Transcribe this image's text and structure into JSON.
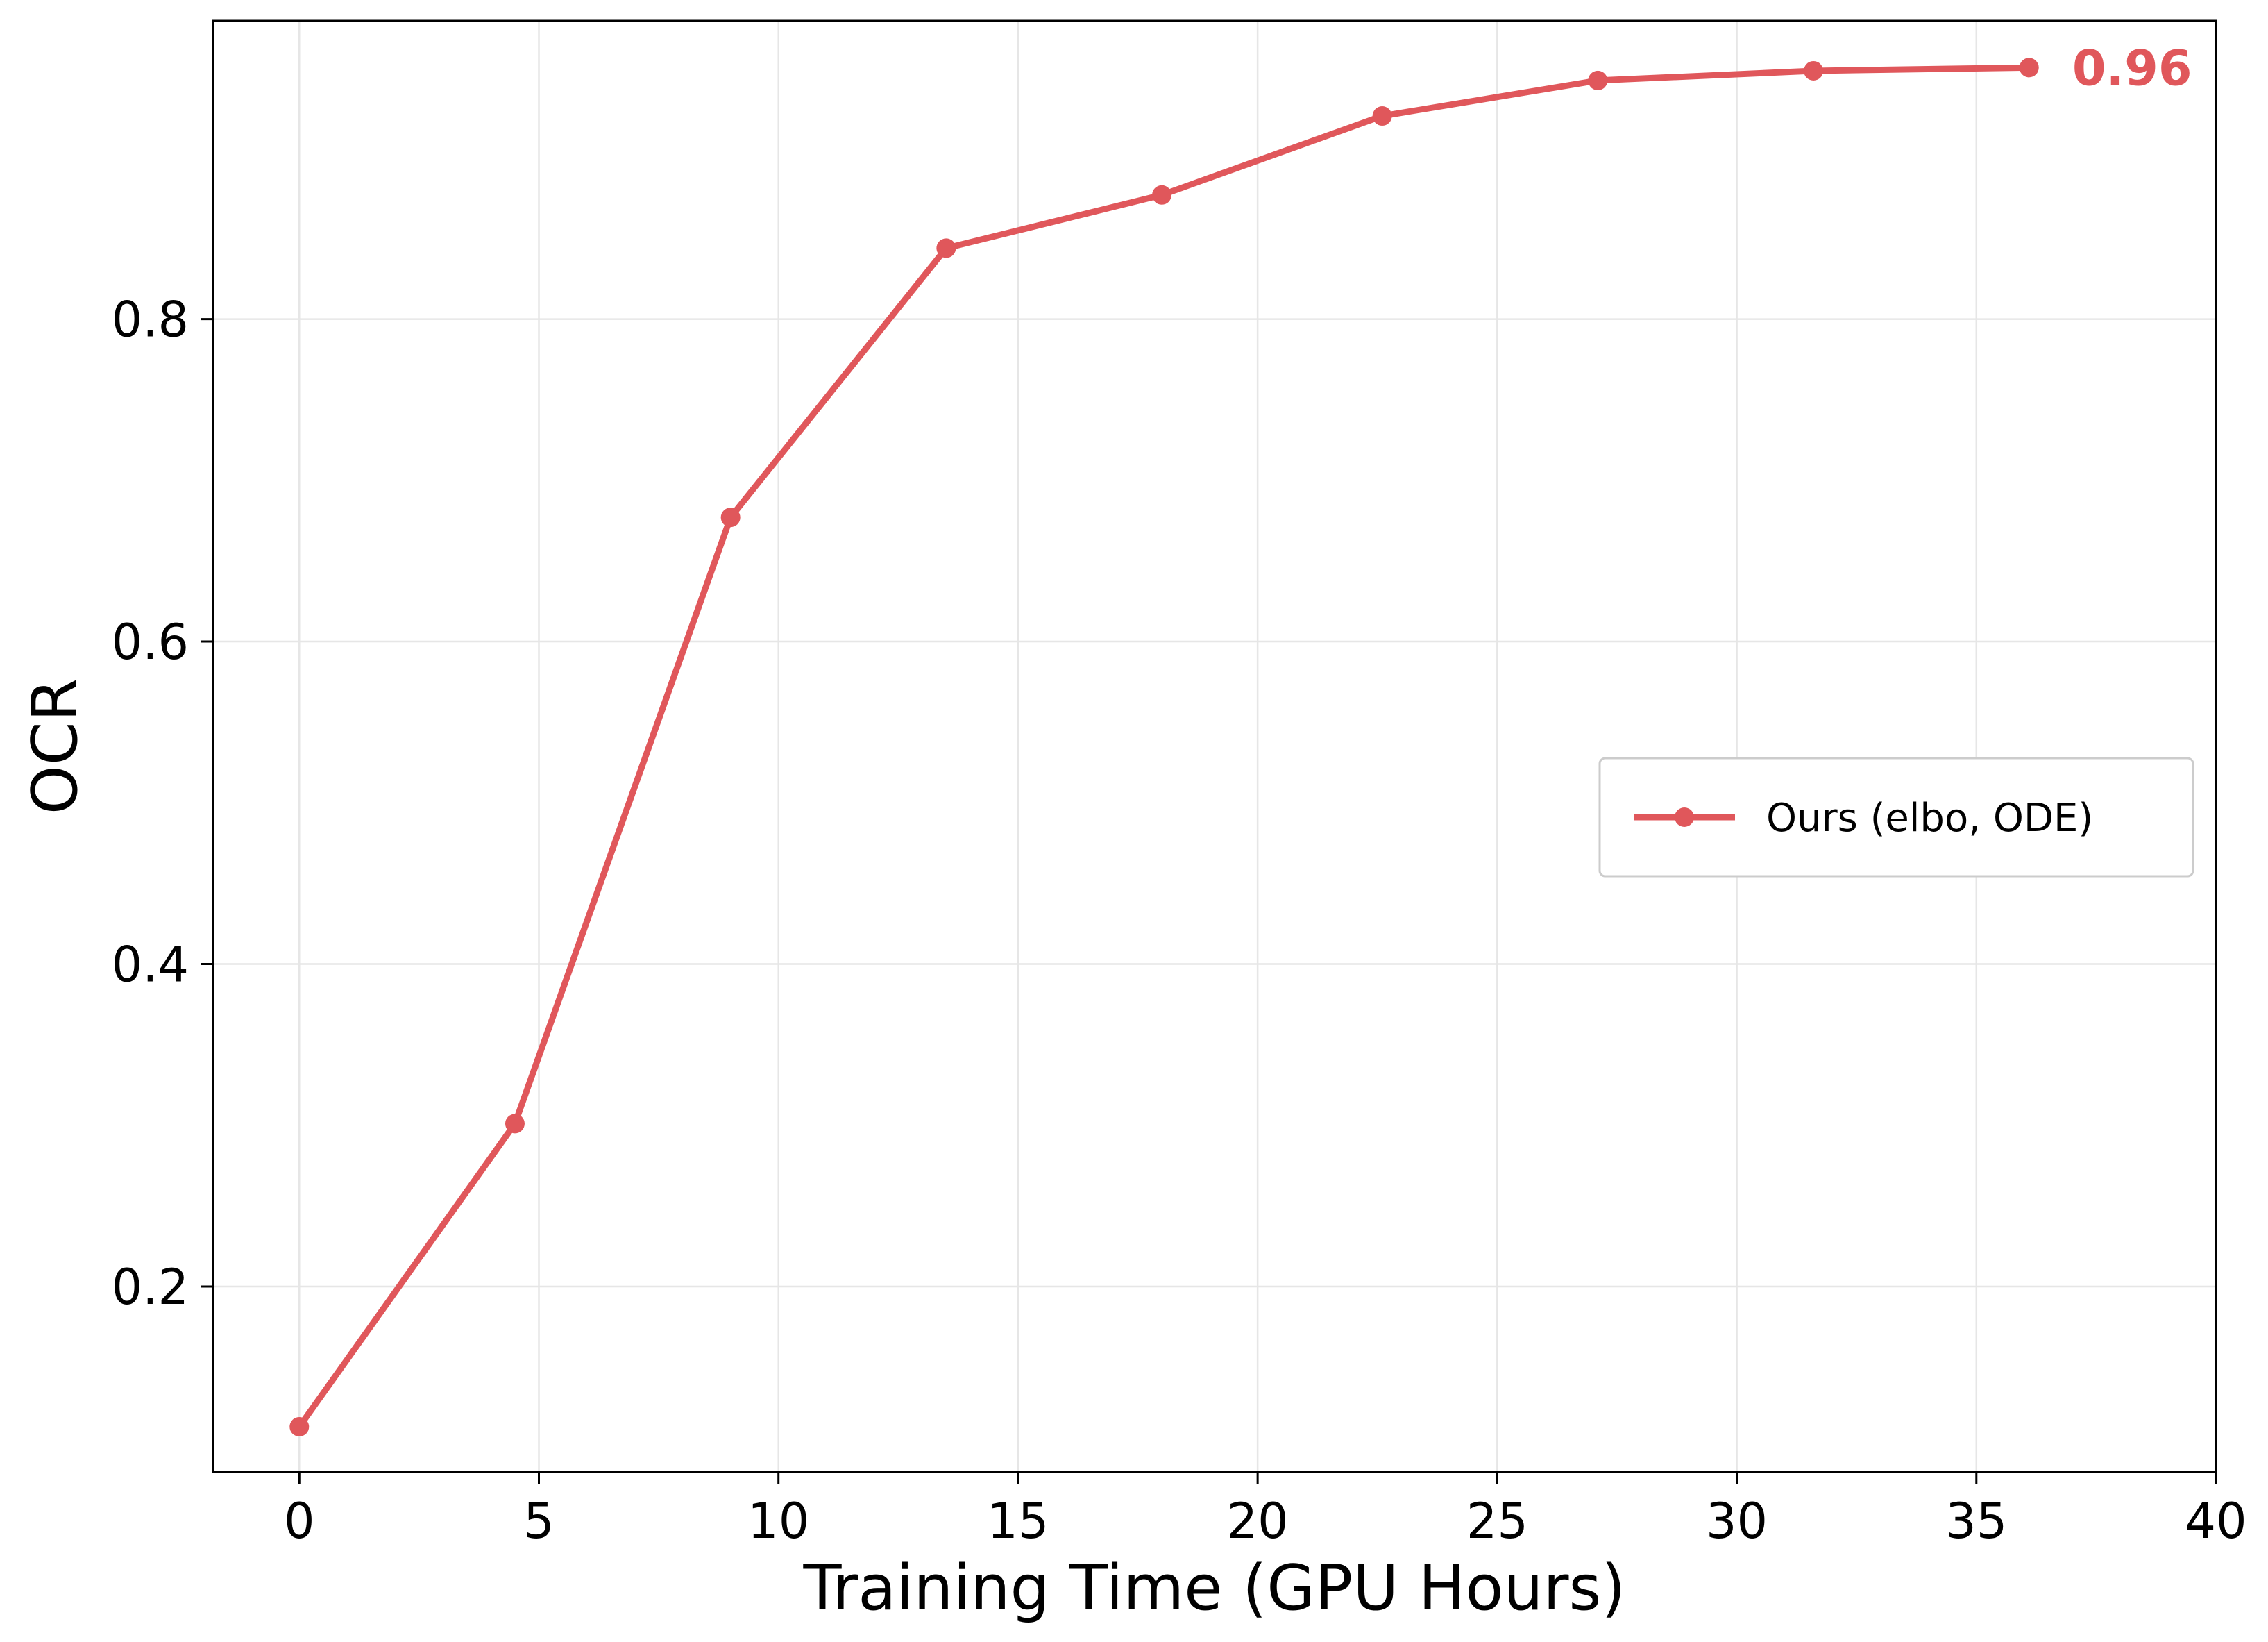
{
  "chart_data": {
    "type": "line",
    "xlabel": "Training Time (GPU Hours)",
    "ylabel": "OCR",
    "xlim": [
      -1.8,
      40
    ],
    "ylim": [
      0.085,
      0.985
    ],
    "xticks": [
      0,
      5,
      10,
      15,
      20,
      25,
      30,
      35,
      40
    ],
    "yticks": [
      0.2,
      0.4,
      0.6,
      0.8
    ],
    "xtick_labels": [
      "0",
      "5",
      "10",
      "15",
      "20",
      "25",
      "30",
      "35",
      "40"
    ],
    "ytick_labels": [
      "0.2",
      "0.4",
      "0.6",
      "0.8"
    ],
    "grid": true,
    "legend_position": "center-right",
    "series": [
      {
        "name": "Ours (elbo, ODE)",
        "color": "#e0575b",
        "x": [
          0,
          4.5,
          9.0,
          13.5,
          18.0,
          22.6,
          27.1,
          31.6,
          36.1
        ],
        "y": [
          0.113,
          0.301,
          0.677,
          0.844,
          0.877,
          0.926,
          0.948,
          0.954,
          0.956
        ]
      }
    ],
    "annotations": [
      {
        "text": "0.96",
        "x": 37.0,
        "y": 0.956,
        "color": "#e0575b"
      }
    ]
  }
}
